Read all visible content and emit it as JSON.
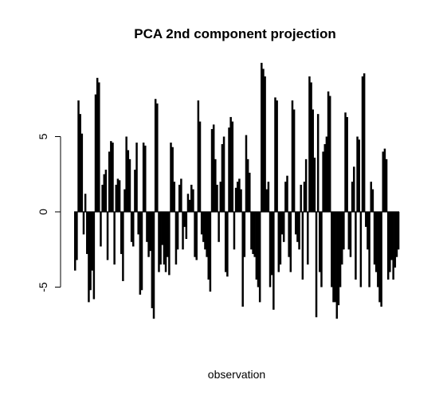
{
  "chart_data": {
    "type": "bar",
    "title": "PCA 2nd component projection",
    "xlabel": "observation",
    "ylabel": "",
    "ylim": [
      -7.2,
      9.9
    ],
    "yticks": [
      -5,
      0,
      5
    ],
    "ytick_labels": [
      "-5",
      "0",
      "5"
    ],
    "grid": false,
    "legend": "none",
    "bar_color": "#000000",
    "values": [
      -3.9,
      -3.2,
      7.4,
      6.5,
      5.2,
      -1.5,
      1.2,
      -2.8,
      -6.0,
      -5.2,
      -3.9,
      -5.8,
      7.8,
      8.9,
      8.6,
      -2.3,
      1.8,
      2.5,
      2.8,
      -3.2,
      4.0,
      4.7,
      4.6,
      -3.5,
      1.8,
      2.2,
      2.1,
      -2.8,
      -4.6,
      1.5,
      5.0,
      4.1,
      3.5,
      -2.0,
      -2.3,
      2.8,
      4.6,
      -1.5,
      -5.5,
      -5.2,
      4.6,
      4.4,
      -2.0,
      -3.0,
      -2.6,
      -6.4,
      -7.1,
      7.5,
      7.2,
      -4.0,
      -3.5,
      -2.2,
      -3.5,
      -4.0,
      -3.0,
      -4.2,
      4.6,
      4.3,
      2.0,
      -3.5,
      -2.5,
      1.8,
      2.2,
      -2.5,
      -1.0,
      -1.8,
      1.2,
      0.8,
      1.8,
      1.5,
      -3.0,
      -3.2,
      7.4,
      6.0,
      -1.5,
      -2.0,
      -2.5,
      -3.0,
      -4.5,
      -5.3,
      5.5,
      5.8,
      3.5,
      1.8,
      -2.0,
      2.0,
      4.5,
      5.0,
      -4.0,
      -4.3,
      5.6,
      6.3,
      6.0,
      -2.5,
      1.6,
      2.0,
      2.2,
      1.5,
      -6.3,
      -3.0,
      5.1,
      3.5,
      2.6,
      -2.5,
      -2.8,
      -3.0,
      -4.5,
      -5.0,
      -6.0,
      9.9,
      9.5,
      9.0,
      1.5,
      2.0,
      -5.0,
      -4.2,
      -6.5,
      7.6,
      7.4,
      -4.0,
      -3.5,
      -1.5,
      -2.0,
      2.0,
      2.4,
      -3.0,
      -4.0,
      7.4,
      6.8,
      -1.5,
      -2.0,
      -2.5,
      1.8,
      -4.5,
      2.0,
      3.5,
      -3.5,
      9.0,
      8.6,
      6.8,
      3.6,
      -7.0,
      6.5,
      -4.0,
      -5.0,
      4.0,
      4.5,
      5.0,
      8.0,
      7.7,
      -5.0,
      -6.0,
      -6.0,
      -7.1,
      -6.2,
      -5.0,
      -3.5,
      -2.5,
      6.6,
      6.3,
      -2.5,
      -3.0,
      2.0,
      3.0,
      -4.5,
      5.0,
      4.8,
      -5.0,
      9.0,
      9.2,
      -1.0,
      -2.5,
      -5.0,
      2.0,
      1.5,
      -3.5,
      -4.0,
      -5.0,
      -6.0,
      -6.3,
      4.0,
      4.2,
      3.5,
      -4.5,
      -4.0,
      -3.2,
      -4.5,
      -3.7,
      -3.0,
      -2.5
    ]
  }
}
